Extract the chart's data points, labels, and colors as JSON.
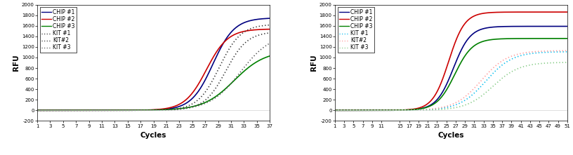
{
  "chart1": {
    "xlabel": "Cycles",
    "ylabel": "RFU",
    "xlim": [
      1,
      37
    ],
    "ylim": [
      -200,
      2000
    ],
    "xticks": [
      1,
      3,
      5,
      7,
      9,
      11,
      13,
      15,
      17,
      19,
      21,
      23,
      25,
      27,
      29,
      31,
      33,
      35,
      37
    ],
    "yticks": [
      -200,
      0,
      200,
      400,
      600,
      800,
      1000,
      1200,
      1400,
      1600,
      1800,
      2000
    ],
    "series": [
      {
        "label": "CHIP #1",
        "color": "#000080",
        "linestyle": "solid",
        "lw": 1.2,
        "L": 1750,
        "k": 0.6,
        "x0": 28.2
      },
      {
        "label": "CHIP #2",
        "color": "#CC0000",
        "linestyle": "solid",
        "lw": 1.2,
        "L": 1540,
        "k": 0.6,
        "x0": 27.2
      },
      {
        "label": "CHIP #3",
        "color": "#008000",
        "linestyle": "solid",
        "lw": 1.2,
        "L": 1130,
        "k": 0.42,
        "x0": 31.5
      },
      {
        "label": "KIT #1",
        "color": "#333333",
        "linestyle": "dotted",
        "lw": 1.2,
        "L": 1630,
        "k": 0.6,
        "x0": 29.2
      },
      {
        "label": "KIT#2",
        "color": "#333333",
        "linestyle": "dotted",
        "lw": 1.2,
        "L": 1490,
        "k": 0.6,
        "x0": 30.2
      },
      {
        "label": "KIT #3",
        "color": "#555555",
        "linestyle": "dotted",
        "lw": 1.2,
        "L": 1460,
        "k": 0.42,
        "x0": 32.5
      }
    ]
  },
  "chart2": {
    "xlabel": "Cycles",
    "ylabel": "RFU",
    "xlim": [
      1,
      51
    ],
    "ylim": [
      -200,
      2000
    ],
    "xticks": [
      1,
      3,
      5,
      7,
      9,
      11,
      15,
      17,
      19,
      21,
      23,
      25,
      27,
      29,
      31,
      33,
      35,
      37,
      39,
      41,
      43,
      45,
      47,
      49,
      51
    ],
    "yticks": [
      -200,
      0,
      200,
      400,
      600,
      800,
      1000,
      1200,
      1400,
      1600,
      1800,
      2000
    ],
    "series": [
      {
        "label": "CHIP #1",
        "color": "#000080",
        "linestyle": "solid",
        "lw": 1.2,
        "L": 1590,
        "k": 0.55,
        "x0": 26.5
      },
      {
        "label": "CHIP #2",
        "color": "#CC0000",
        "linestyle": "solid",
        "lw": 1.2,
        "L": 1860,
        "k": 0.58,
        "x0": 25.5
      },
      {
        "label": "CHIP #3",
        "color": "#008000",
        "linestyle": "solid",
        "lw": 1.2,
        "L": 1360,
        "k": 0.52,
        "x0": 26.8
      },
      {
        "label": "KIT #1",
        "color": "#00BBEE",
        "linestyle": "dotted",
        "lw": 1.2,
        "L": 1110,
        "k": 0.35,
        "x0": 33.5
      },
      {
        "label": "KIT#2",
        "color": "#FF9999",
        "linestyle": "dotted",
        "lw": 1.2,
        "L": 1130,
        "k": 0.35,
        "x0": 32.5
      },
      {
        "label": "KIT #3",
        "color": "#88CC88",
        "linestyle": "dotted",
        "lw": 1.2,
        "L": 910,
        "k": 0.35,
        "x0": 35.0
      }
    ]
  },
  "bg_color": "#FFFFFF",
  "legend_fontsize": 5.5,
  "axis_fontsize": 7.5,
  "tick_fontsize": 5.0
}
